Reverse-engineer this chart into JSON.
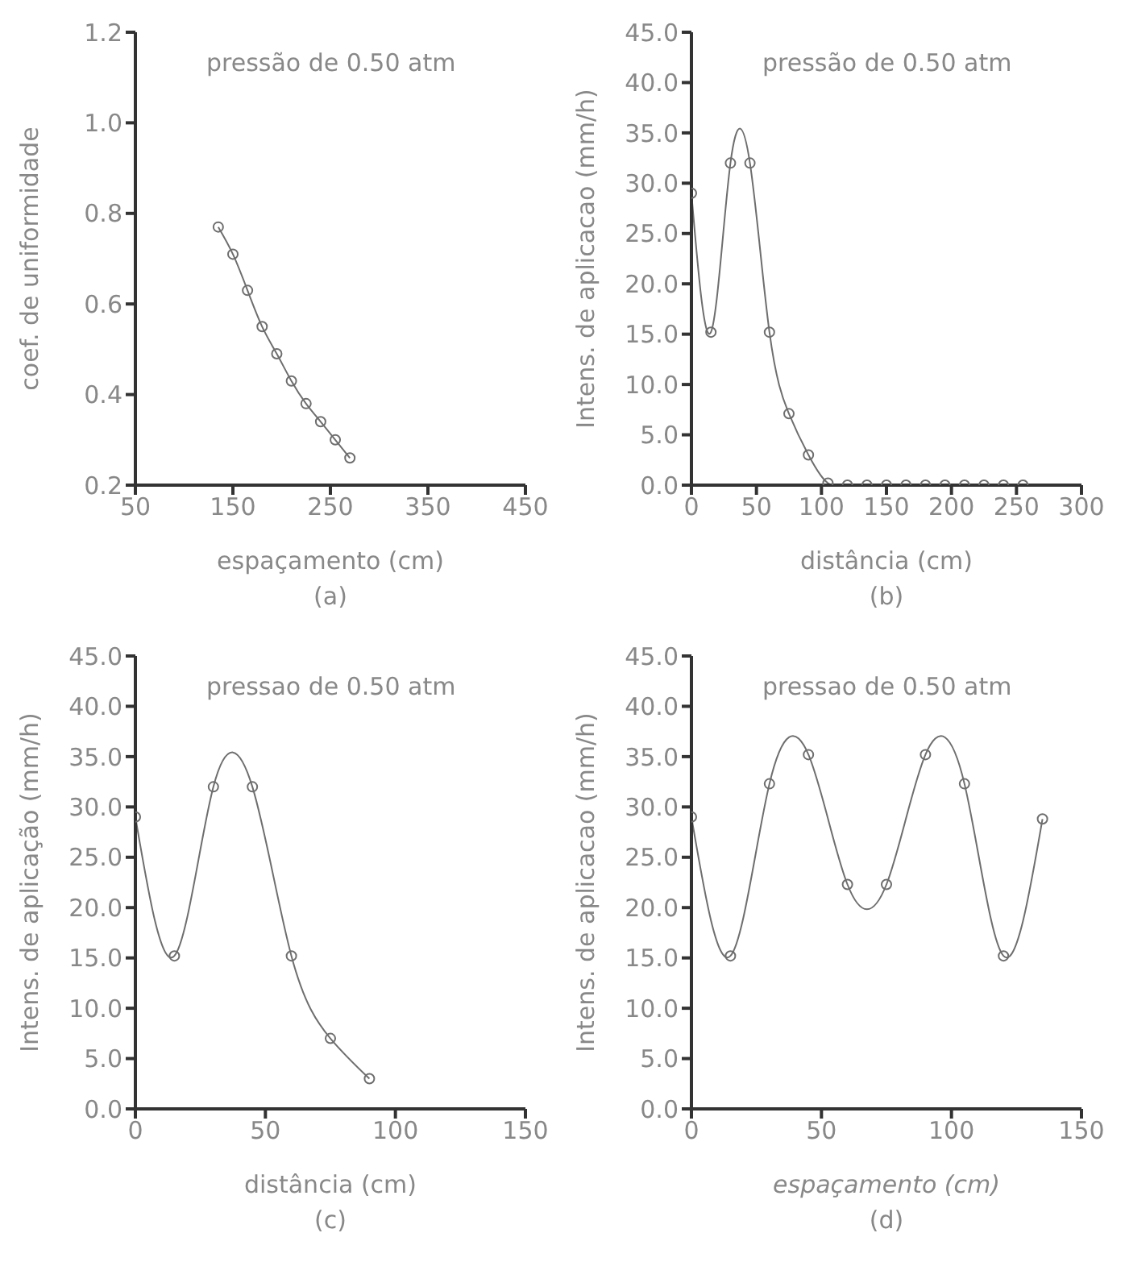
{
  "chart_data": [
    {
      "type": "line",
      "annotations": [
        "pressão de 0.50 atm",
        "(a)"
      ],
      "xlabel": "espaçamento (cm)",
      "ylabel": "coef. de uniformidade",
      "marker": "circle",
      "grid": false,
      "legend": false,
      "xlim": [
        50,
        450
      ],
      "xticks": [
        50,
        150,
        250,
        350,
        450
      ],
      "ylim": [
        0.2,
        1.2
      ],
      "yticks": [
        0.2,
        0.4,
        0.6,
        0.8,
        {
          "value": 1,
          "label": "1.0"
        },
        1.2
      ],
      "x": [
        135,
        150,
        165,
        180,
        195,
        210,
        225,
        240,
        255,
        270
      ],
      "series": [
        {
          "color": "#6e6e6e",
          "values": [
            0.77,
            0.71,
            0.63,
            0.55,
            0.49,
            0.43,
            0.38,
            0.34,
            0.3,
            0.26
          ]
        }
      ]
    },
    {
      "type": "line",
      "annotations": [
        "pressão de 0.50 atm",
        "(b)"
      ],
      "xlabel": "distância (cm)",
      "ylabel": "Intens. de aplicacao (mm/h)",
      "marker": "circle",
      "grid": false,
      "legend": false,
      "xlim": [
        0,
        300
      ],
      "xticks": [
        0,
        50,
        100,
        150,
        200,
        250,
        300
      ],
      "ylim": [
        0,
        45
      ],
      "yticks": [
        {
          "value": 0,
          "label": "0.0"
        },
        {
          "value": 5,
          "label": "5.0"
        },
        {
          "value": 10,
          "label": "10.0"
        },
        {
          "value": 15,
          "label": "15.0"
        },
        {
          "value": 20,
          "label": "20.0"
        },
        {
          "value": 25,
          "label": "25.0"
        },
        {
          "value": 30,
          "label": "30.0"
        },
        {
          "value": 35,
          "label": "35.0"
        },
        {
          "value": 40,
          "label": "40.0"
        },
        {
          "value": 45,
          "label": "45.0"
        }
      ],
      "x": [
        0,
        15,
        30,
        45,
        60,
        75,
        90,
        105,
        120,
        135,
        150,
        165,
        180,
        195,
        210,
        225,
        240,
        255
      ],
      "series": [
        {
          "color": "#6e6e6e",
          "values": [
            29,
            15.2,
            32,
            32,
            15.2,
            7.1,
            3,
            0.2,
            0,
            0,
            0,
            0,
            0,
            0,
            0,
            0,
            0,
            0
          ]
        }
      ]
    },
    {
      "type": "line",
      "annotations": [
        "pressao de 0.50 atm",
        "(c)"
      ],
      "xlabel": "distância (cm)",
      "ylabel": "Intens. de aplicação (mm/h)",
      "marker": "circle",
      "grid": false,
      "legend": false,
      "xlim": [
        0,
        150
      ],
      "xticks": [
        0,
        50,
        100,
        150
      ],
      "ylim": [
        0,
        45
      ],
      "yticks": [
        {
          "value": 0,
          "label": "0.0"
        },
        {
          "value": 5,
          "label": "5.0"
        },
        {
          "value": 10,
          "label": "10.0"
        },
        {
          "value": 15,
          "label": "15.0"
        },
        {
          "value": 20,
          "label": "20.0"
        },
        {
          "value": 25,
          "label": "25.0"
        },
        {
          "value": 30,
          "label": "30.0"
        },
        {
          "value": 35,
          "label": "35.0"
        },
        {
          "value": 40,
          "label": "40.0"
        },
        {
          "value": 45,
          "label": "45.0"
        }
      ],
      "x": [
        0,
        15,
        30,
        45,
        60,
        75,
        90
      ],
      "series": [
        {
          "color": "#6e6e6e",
          "values": [
            29,
            15.2,
            32,
            32,
            15.2,
            7,
            3
          ]
        }
      ]
    },
    {
      "type": "line",
      "annotations": [
        "pressao de 0.50 atm",
        "(d)"
      ],
      "xlabel": "espaçamento (cm)",
      "ylabel": "Intens. de aplicacao (mm/h)",
      "marker": "circle",
      "grid": false,
      "legend": false,
      "xlim": [
        0,
        150
      ],
      "xticks": [
        0,
        50,
        100,
        150
      ],
      "ylim": [
        0,
        45
      ],
      "yticks": [
        {
          "value": 0,
          "label": "0.0"
        },
        {
          "value": 5,
          "label": "5.0"
        },
        {
          "value": 10,
          "label": "10.0"
        },
        {
          "value": 15,
          "label": "15.0"
        },
        {
          "value": 20,
          "label": "20.0"
        },
        {
          "value": 25,
          "label": "25.0"
        },
        {
          "value": 30,
          "label": "30.0"
        },
        {
          "value": 35,
          "label": "35.0"
        },
        {
          "value": 40,
          "label": "40.0"
        },
        {
          "value": 45,
          "label": "45.0"
        }
      ],
      "x": [
        0,
        15,
        30,
        45,
        60,
        75,
        90,
        105,
        120,
        135
      ],
      "series": [
        {
          "color": "#6e6e6e",
          "values": [
            29,
            15.2,
            32.3,
            35.2,
            22.3,
            22.3,
            35.2,
            32.3,
            15.2,
            28.8
          ]
        }
      ]
    }
  ]
}
